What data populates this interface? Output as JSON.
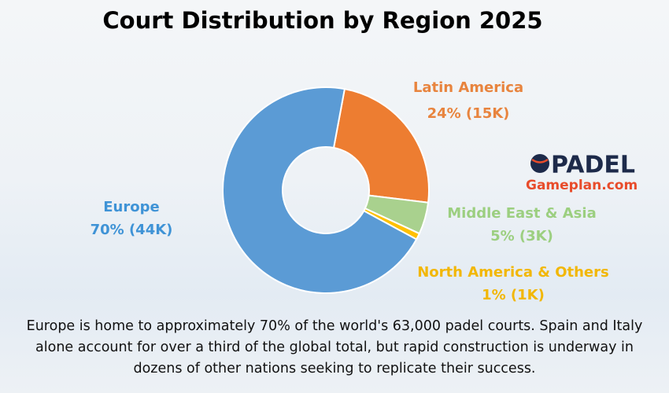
{
  "chart_data": {
    "type": "donut",
    "title": "Court Distribution by Region 2025",
    "categories": [
      "Latin America",
      "Middle East & Asia",
      "North America & Others",
      "Europe"
    ],
    "values": [
      24,
      5,
      1,
      70
    ],
    "value_labels": [
      "24% (15K)",
      "5% (3K)",
      "1% (1K)",
      "70% (44K)"
    ],
    "colors": [
      "#ed7d31",
      "#a9d18e",
      "#ffc000",
      "#5b9bd5"
    ],
    "label_colors": [
      "#e8843e",
      "#9ccf80",
      "#f2b705",
      "#3f93d6"
    ],
    "caption": "Europe is home to approximately 70% of the world's 63,000 padel courts. Spain and Italy alone account for over a third of the global total, but rapid construction is underway in dozens of other nations seeking to replicate their success."
  },
  "logo": {
    "brand": "PADEL",
    "site": "Gameplan.com"
  }
}
